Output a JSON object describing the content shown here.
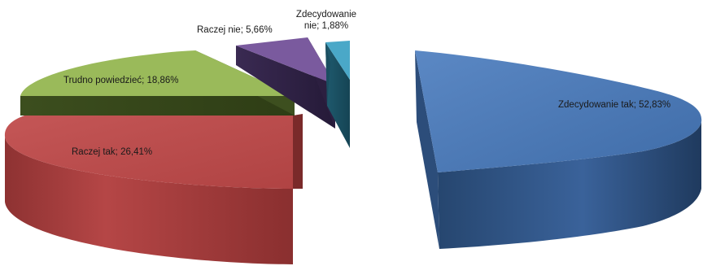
{
  "chart_data": {
    "type": "pie",
    "variant": "3d-exploded",
    "title": "",
    "legend": "none",
    "slices": [
      {
        "name": "Zdecydowanie tak",
        "value": 52.83,
        "label": "Zdecydowanie tak; 52,83%",
        "color": "#4a78b6"
      },
      {
        "name": "Raczej tak",
        "value": 26.41,
        "label": "Raczej tak; 26,41%",
        "color": "#b84a4a"
      },
      {
        "name": "Trudno powiedzieć",
        "value": 18.86,
        "label": "Trudno powiedzieć; 18,86%",
        "color": "#9aba5a"
      },
      {
        "name": "Raczej nie",
        "value": 5.66,
        "label": "Raczej nie; 5,66%",
        "color": "#7a5a9e"
      },
      {
        "name": "Zdecydowanie nie",
        "value": 1.88,
        "label": "Zdecydowanie nie; 1,88%",
        "color": "#4aa8c8"
      }
    ]
  }
}
